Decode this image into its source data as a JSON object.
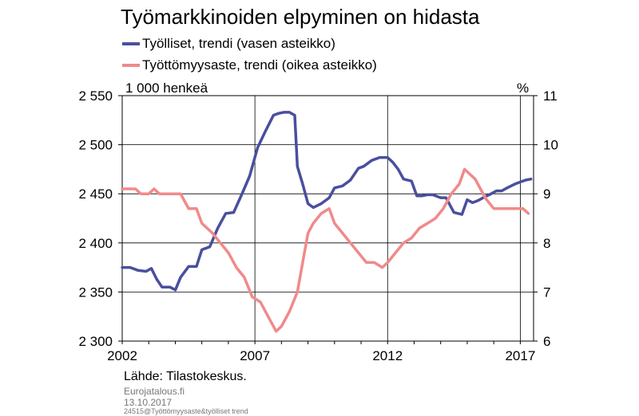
{
  "title": "Työmarkkinoiden elpyminen on hidasta",
  "left_unit": "1 000 henkeä",
  "right_unit": "%",
  "source": "Lähde: Tilastokeskus.",
  "footer": {
    "site": "Eurojatalous.fi",
    "date": "13.10.2017",
    "file": "24515@Työttömyysaste&työlliset trend"
  },
  "colors": {
    "employed": "#4a4f9d",
    "unemployment": "#f08a8a",
    "axis": "#000000"
  },
  "chart_data": {
    "type": "line",
    "title": "Työmarkkinoiden elpyminen on hidasta",
    "x_ticks": [
      "2002",
      "2007",
      "2012",
      "2017"
    ],
    "xlim": [
      2002,
      2017.5
    ],
    "left_axis": {
      "label": "1 000 henkeä",
      "ylim": [
        2300,
        2550
      ],
      "ticks": [
        "2 300",
        "2 350",
        "2 400",
        "2 450",
        "2 500",
        "2 550"
      ]
    },
    "right_axis": {
      "label": "%",
      "ylim": [
        6,
        11
      ],
      "ticks": [
        "6",
        "7",
        "8",
        "9",
        "10",
        "11"
      ]
    },
    "grid": true,
    "legend_position": "top-left",
    "series": [
      {
        "name": "Työlliset, trendi (vasen asteikko)",
        "axis": "left",
        "x": [
          2002.0,
          2002.3,
          2002.6,
          2002.9,
          2003.1,
          2003.3,
          2003.5,
          2003.8,
          2004.0,
          2004.2,
          2004.5,
          2004.8,
          2005.0,
          2005.3,
          2005.6,
          2005.9,
          2006.2,
          2006.5,
          2006.8,
          2007.1,
          2007.4,
          2007.7,
          2007.9,
          2008.1,
          2008.3,
          2008.5,
          2008.6,
          2008.8,
          2009.0,
          2009.2,
          2009.5,
          2009.8,
          2010.0,
          2010.3,
          2010.6,
          2010.9,
          2011.1,
          2011.4,
          2011.7,
          2012.0,
          2012.2,
          2012.4,
          2012.6,
          2012.9,
          2013.1,
          2013.3,
          2013.5,
          2013.7,
          2014.0,
          2014.2,
          2014.5,
          2014.8,
          2015.0,
          2015.2,
          2015.4,
          2015.6,
          2015.9,
          2016.1,
          2016.3,
          2016.5,
          2016.8,
          2017.0,
          2017.2,
          2017.4
        ],
        "values": [
          2375,
          2375,
          2372,
          2371,
          2374,
          2363,
          2355,
          2355,
          2352,
          2365,
          2376,
          2376,
          2393,
          2396,
          2415,
          2430,
          2431,
          2449,
          2468,
          2497,
          2514,
          2530,
          2532,
          2533,
          2533,
          2530,
          2478,
          2460,
          2440,
          2436,
          2440,
          2446,
          2456,
          2458,
          2464,
          2476,
          2478,
          2484,
          2487,
          2487,
          2482,
          2475,
          2465,
          2463,
          2448,
          2448,
          2449,
          2449,
          2446,
          2446,
          2431,
          2429,
          2444,
          2441,
          2443,
          2446,
          2450,
          2453,
          2453,
          2456,
          2460,
          2462,
          2464,
          2465
        ]
      },
      {
        "name": "Työttömyysaste, trendi (oikea asteikko)",
        "axis": "right",
        "x": [
          2002.0,
          2002.5,
          2002.7,
          2003.0,
          2003.2,
          2003.4,
          2003.6,
          2004.0,
          2004.2,
          2004.5,
          2004.8,
          2005.0,
          2005.4,
          2005.7,
          2006.0,
          2006.3,
          2006.6,
          2006.9,
          2007.2,
          2007.5,
          2007.8,
          2008.0,
          2008.3,
          2008.6,
          2008.8,
          2009.0,
          2009.2,
          2009.5,
          2009.8,
          2010.0,
          2010.3,
          2010.6,
          2010.9,
          2011.2,
          2011.5,
          2011.8,
          2012.0,
          2012.3,
          2012.6,
          2012.9,
          2013.2,
          2013.5,
          2013.8,
          2014.1,
          2014.4,
          2014.7,
          2014.9,
          2015.1,
          2015.3,
          2015.5,
          2015.7,
          2016.0,
          2016.3,
          2016.6,
          2016.9,
          2017.1,
          2017.3
        ],
        "values": [
          9.1,
          9.1,
          9.0,
          9.0,
          9.1,
          9.0,
          9.0,
          9.0,
          9.0,
          8.7,
          8.7,
          8.4,
          8.2,
          8.0,
          7.8,
          7.5,
          7.3,
          6.9,
          6.8,
          6.5,
          6.2,
          6.3,
          6.6,
          7.0,
          7.6,
          8.2,
          8.4,
          8.6,
          8.7,
          8.4,
          8.2,
          8.0,
          7.8,
          7.6,
          7.6,
          7.5,
          7.6,
          7.8,
          8.0,
          8.1,
          8.3,
          8.4,
          8.5,
          8.7,
          9.0,
          9.2,
          9.5,
          9.4,
          9.3,
          9.1,
          8.9,
          8.7,
          8.7,
          8.7,
          8.7,
          8.7,
          8.6
        ]
      }
    ]
  }
}
